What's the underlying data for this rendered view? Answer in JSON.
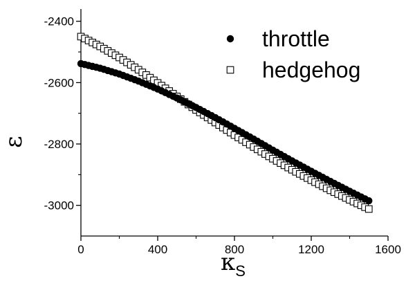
{
  "chart_data": {
    "type": "scatter",
    "title": "",
    "xlabel": "κ",
    "xlabel_subscript": "S",
    "ylabel": "ε",
    "xlim": [
      0,
      1600
    ],
    "ylim": [
      -3100,
      -2360
    ],
    "x_ticks": [
      0,
      400,
      800,
      1200,
      1600
    ],
    "x_tick_labels": [
      "0",
      "400",
      "800",
      "1200",
      "1600"
    ],
    "y_ticks": [
      -2400,
      -2600,
      -2800,
      -3000
    ],
    "y_tick_labels": [
      "-2400",
      "-2600",
      "-2800",
      "-3000"
    ],
    "grid": false,
    "legend_position": "top-right",
    "series": [
      {
        "name": "throttle",
        "marker": "filled-circle",
        "color": "#000000",
        "x": [
          0,
          100,
          200,
          300,
          400,
          500,
          600,
          700,
          800,
          900,
          1000,
          1100,
          1200,
          1300,
          1400,
          1500
        ],
        "y": [
          -2538,
          -2553,
          -2572,
          -2595,
          -2621,
          -2650,
          -2681,
          -2714,
          -2749,
          -2784,
          -2820,
          -2855,
          -2889,
          -2922,
          -2954,
          -2985
        ]
      },
      {
        "name": "hedgehog",
        "marker": "open-square",
        "color": "#000000",
        "x": [
          0,
          100,
          200,
          300,
          400,
          500,
          600,
          700,
          800,
          900,
          1000,
          1100,
          1200,
          1300,
          1400,
          1500
        ],
        "y": [
          -2450,
          -2482,
          -2518,
          -2558,
          -2601,
          -2645,
          -2689,
          -2730,
          -2771,
          -2810,
          -2848,
          -2884,
          -2918,
          -2951,
          -2982,
          -3012
        ]
      }
    ]
  },
  "colors": {
    "background": "#ffffff",
    "ink": "#000000"
  }
}
